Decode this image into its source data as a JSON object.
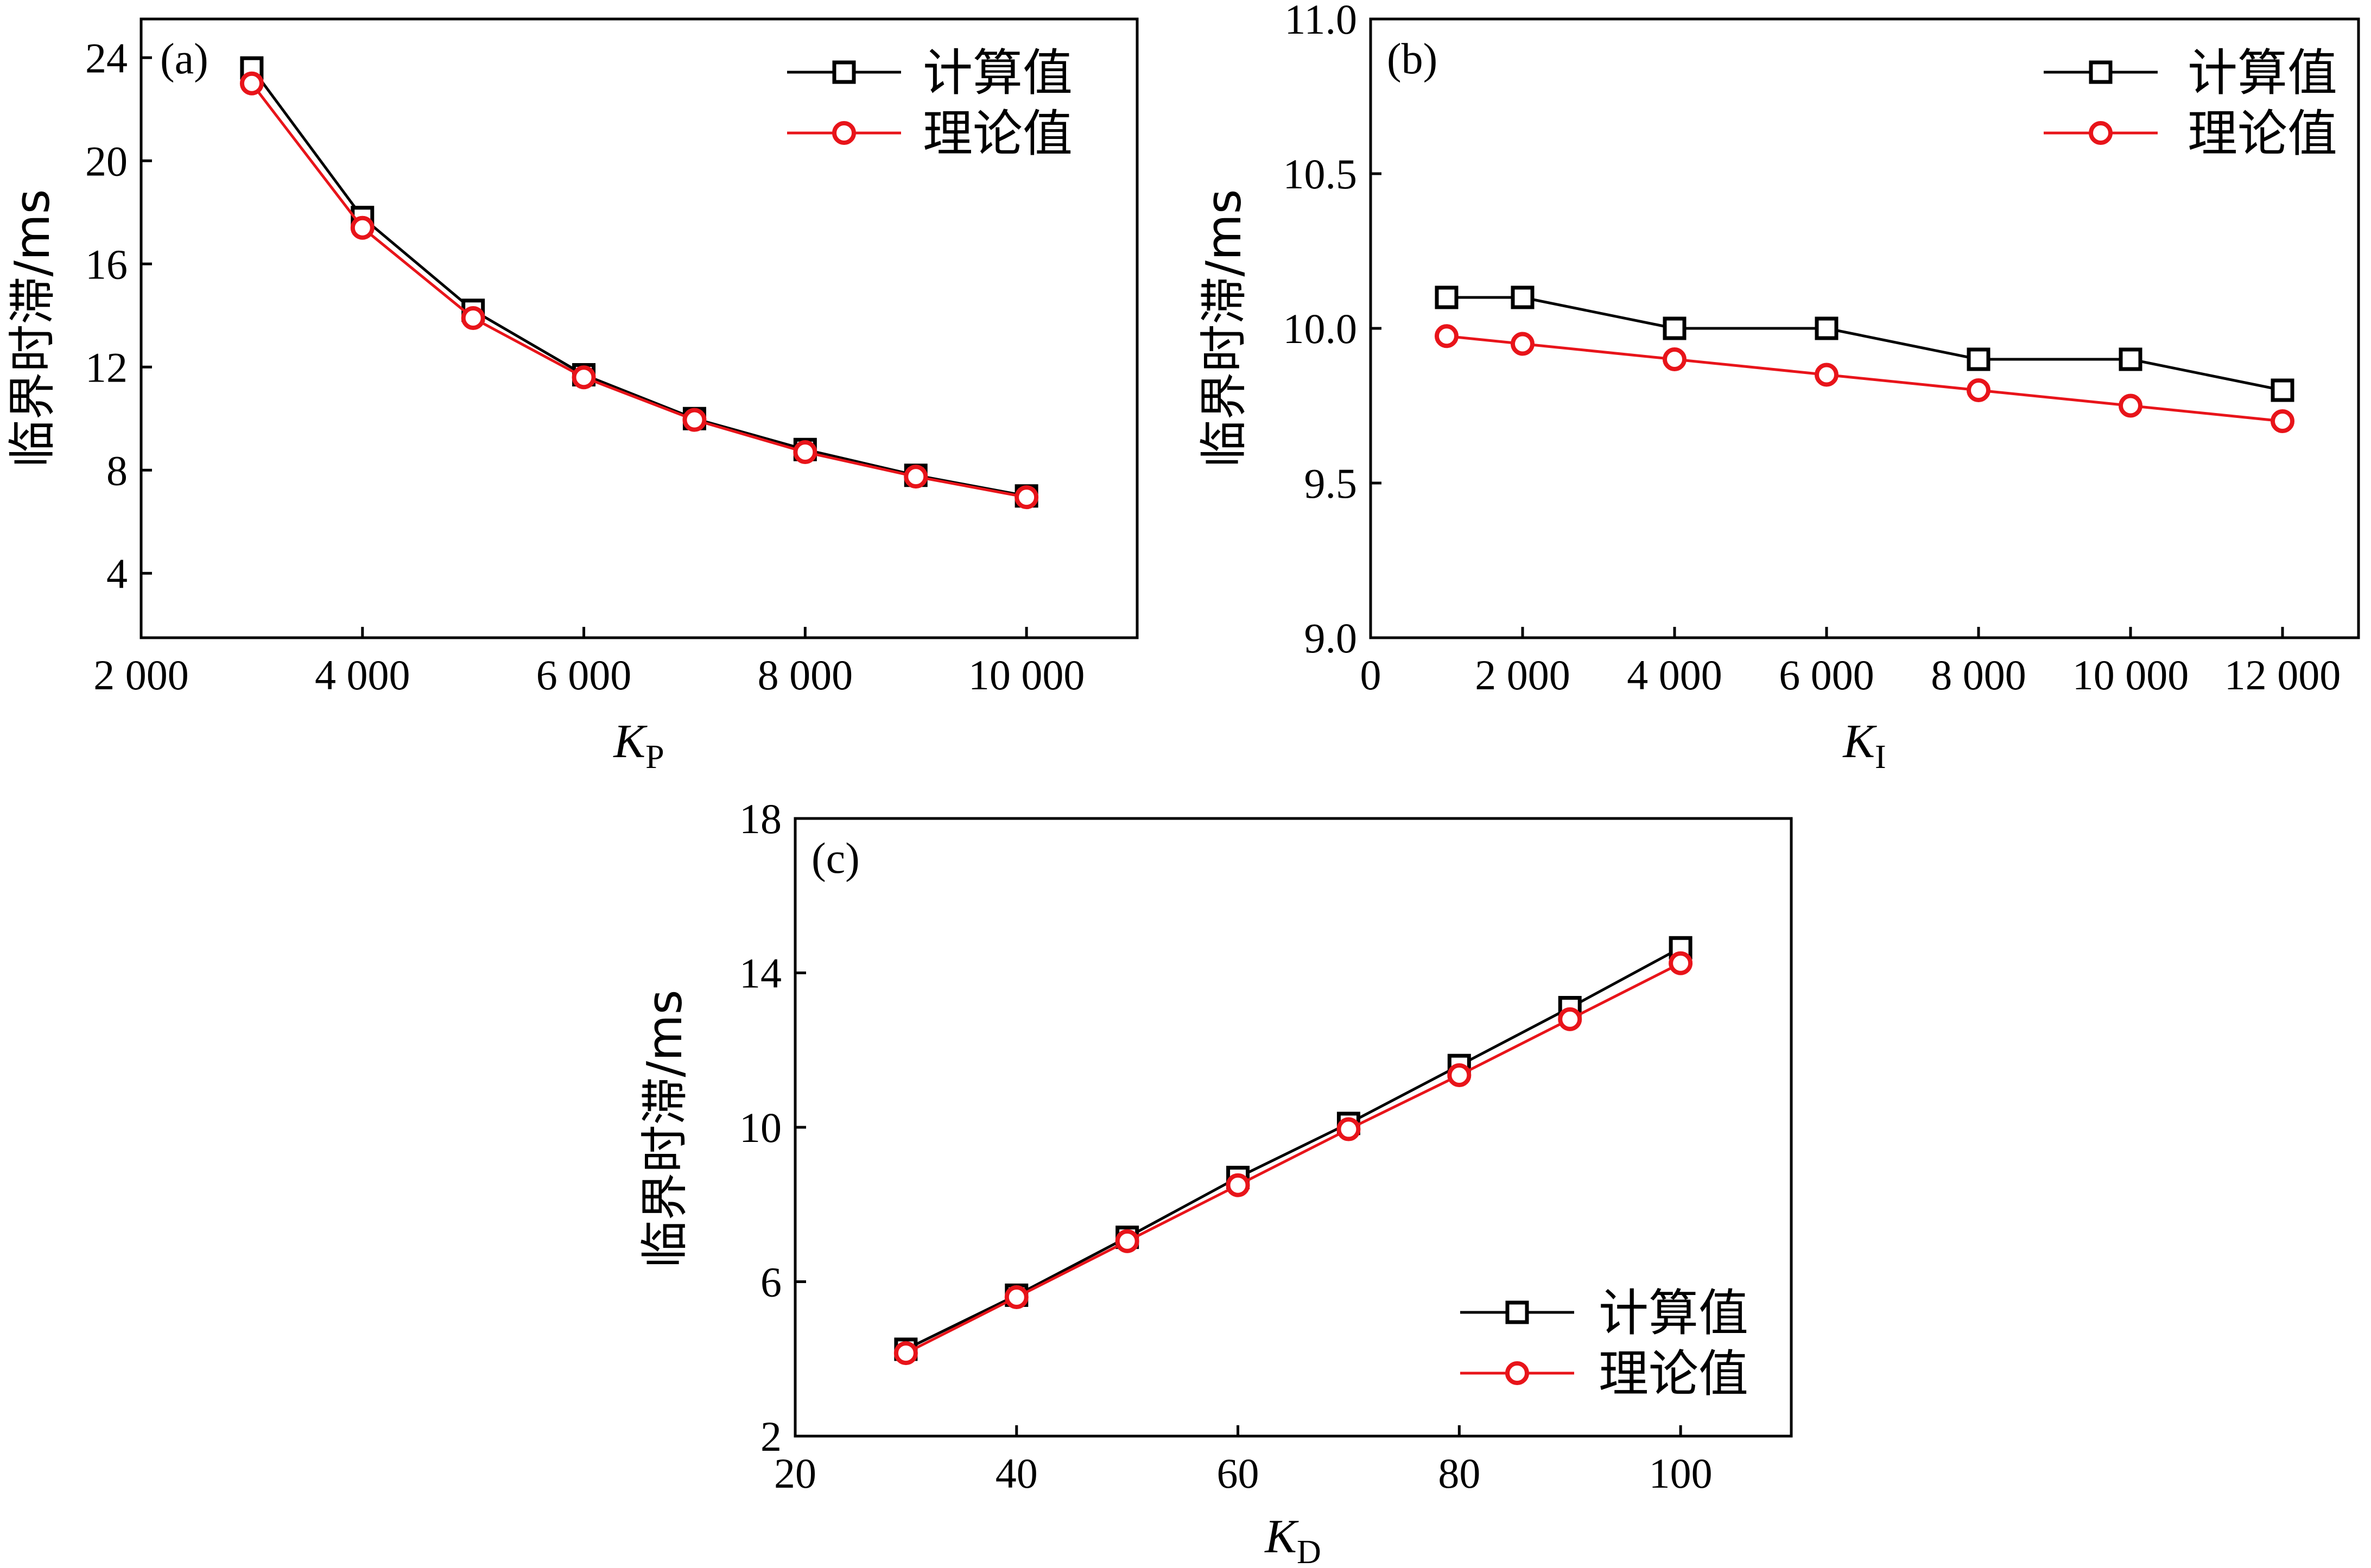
{
  "chart_data": [
    {
      "panel": "(a)",
      "type": "line",
      "xlabel": "K",
      "xlabel_sub": "P",
      "ylabel": "临界时滞/ms",
      "xlim": [
        2000,
        11000
      ],
      "ylim": [
        1.5,
        25.5
      ],
      "xticks": [
        2000,
        4000,
        6000,
        8000,
        10000
      ],
      "xtick_labels": [
        "2 000",
        "4 000",
        "6 000",
        "8 000",
        "10 000"
      ],
      "yticks": [
        4,
        8,
        12,
        16,
        20,
        24
      ],
      "ytick_labels": [
        "4",
        "8",
        "12",
        "16",
        "20",
        "24"
      ],
      "legend": "top-right",
      "series": [
        {
          "name": "计算值",
          "marker": "square",
          "color": "#000000",
          "x": [
            3000,
            4000,
            5000,
            6000,
            7000,
            8000,
            9000,
            10000
          ],
          "y": [
            23.6,
            17.8,
            14.2,
            11.7,
            10.0,
            8.8,
            7.8,
            7.0
          ]
        },
        {
          "name": "理论值",
          "marker": "circle",
          "color": "#e8141a",
          "x": [
            3000,
            4000,
            5000,
            6000,
            7000,
            8000,
            9000,
            10000
          ],
          "y": [
            23.0,
            17.4,
            13.9,
            11.6,
            9.95,
            8.7,
            7.75,
            6.95
          ]
        }
      ]
    },
    {
      "panel": "(b)",
      "type": "line",
      "xlabel": "K",
      "xlabel_sub": "I",
      "ylabel": "临界时滞/ms",
      "xlim": [
        0,
        13000
      ],
      "ylim": [
        9.0,
        11.0
      ],
      "xticks": [
        0,
        2000,
        4000,
        6000,
        8000,
        10000,
        12000
      ],
      "xtick_labels": [
        "0",
        "2 000",
        "4 000",
        "6 000",
        "8 000",
        "10 000",
        "12 000"
      ],
      "yticks": [
        9.0,
        9.5,
        10.0,
        10.5,
        11.0
      ],
      "ytick_labels": [
        "9.0",
        "9.5",
        "10.0",
        "10.5",
        "11.0"
      ],
      "legend": "top-right",
      "series": [
        {
          "name": "计算值",
          "marker": "square",
          "color": "#000000",
          "x": [
            1000,
            2000,
            4000,
            6000,
            8000,
            10000,
            12000
          ],
          "y": [
            10.1,
            10.1,
            10.0,
            10.0,
            9.9,
            9.9,
            9.8
          ]
        },
        {
          "name": "理论值",
          "marker": "circle",
          "color": "#e8141a",
          "x": [
            1000,
            2000,
            4000,
            6000,
            8000,
            10000,
            12000
          ],
          "y": [
            9.975,
            9.95,
            9.9,
            9.85,
            9.8,
            9.75,
            9.7
          ]
        }
      ]
    },
    {
      "panel": "(c)",
      "type": "line",
      "xlabel": "K",
      "xlabel_sub": "D",
      "ylabel": "临界时滞/ms",
      "xlim": [
        20,
        110
      ],
      "ylim": [
        2,
        18
      ],
      "xticks": [
        20,
        40,
        60,
        80,
        100
      ],
      "xtick_labels": [
        "20",
        "40",
        "60",
        "80",
        "100"
      ],
      "yticks": [
        2,
        6,
        10,
        14,
        18
      ],
      "ytick_labels": [
        "2",
        "6",
        "10",
        "14",
        "18"
      ],
      "legend": "bottom-right",
      "series": [
        {
          "name": "计算值",
          "marker": "square",
          "color": "#000000",
          "x": [
            30,
            40,
            50,
            60,
            70,
            80,
            90,
            100
          ],
          "y": [
            4.25,
            5.65,
            7.15,
            8.7,
            10.1,
            11.6,
            13.1,
            14.65
          ]
        },
        {
          "name": "理论值",
          "marker": "circle",
          "color": "#e8141a",
          "x": [
            30,
            40,
            50,
            60,
            70,
            80,
            90,
            100
          ],
          "y": [
            4.15,
            5.6,
            7.05,
            8.5,
            9.95,
            11.35,
            12.8,
            14.25
          ]
        }
      ]
    }
  ]
}
